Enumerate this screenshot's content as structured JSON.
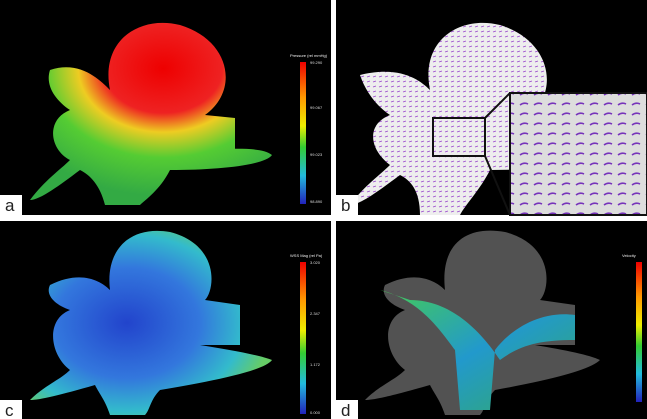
{
  "panels": [
    {
      "label": "a",
      "colorbar": {
        "title": "Pressure (rel mmHg)",
        "ticks": [
          "99.290",
          "99.067",
          "99.023",
          "98.890"
        ]
      }
    },
    {
      "label": "b"
    },
    {
      "label": "c",
      "colorbar": {
        "title": "WSS Mag (rel Pa)",
        "ticks": [
          "3.020",
          "2.347",
          "1.172",
          "0.000"
        ]
      }
    },
    {
      "label": "d",
      "colorbar": {
        "title": "Velocity"
      }
    }
  ]
}
